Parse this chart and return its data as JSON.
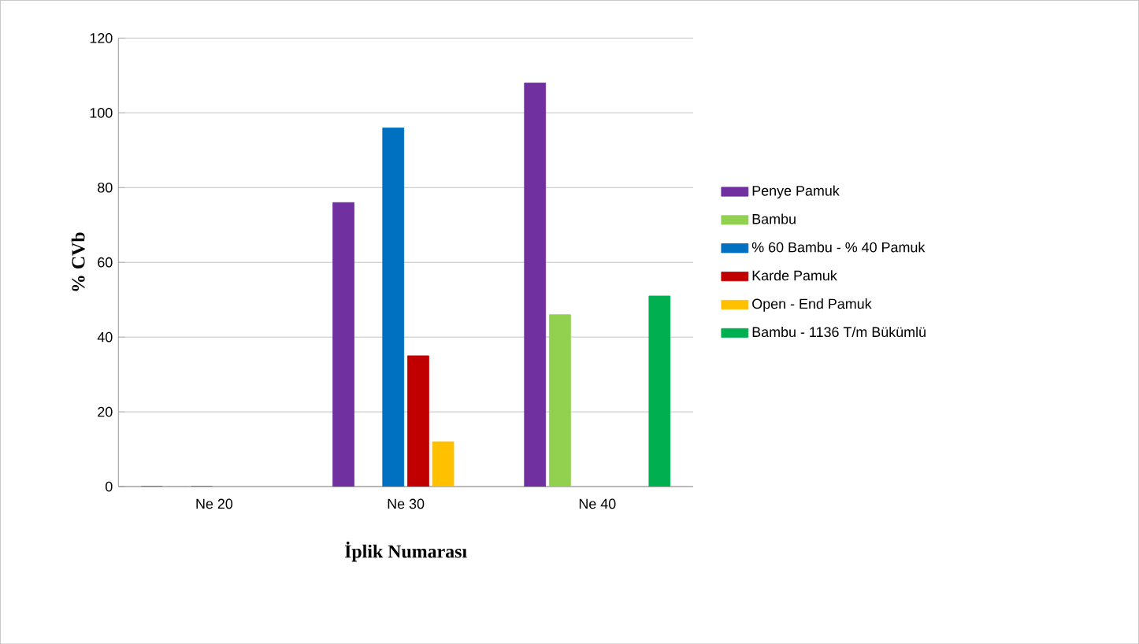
{
  "chart_data": {
    "type": "bar",
    "xlabel": "İplik Numarası",
    "ylabel": "% CVb",
    "categories": [
      "Ne 20",
      "Ne 30",
      "Ne 40"
    ],
    "series": [
      {
        "name": "Penye Pamuk",
        "color": "#7030a0",
        "values": [
          0,
          76,
          108
        ]
      },
      {
        "name": "Bambu",
        "color": "#92d050",
        "values": [
          0,
          0,
          46
        ]
      },
      {
        "name": "% 60 Bambu - % 40 Pamuk",
        "color": "#0070c0",
        "values": [
          0,
          96,
          null
        ]
      },
      {
        "name": "Karde Pamuk",
        "color": "#c00000",
        "values": [
          null,
          35,
          null
        ]
      },
      {
        "name": "Open - End Pamuk",
        "color": "#ffc000",
        "values": [
          null,
          12,
          null
        ]
      },
      {
        "name": "Bambu - 1136 T/m Bükümlü",
        "color": "#00b050",
        "values": [
          null,
          null,
          51
        ]
      }
    ],
    "ylim": [
      0,
      120
    ],
    "yticks": [
      0,
      20,
      40,
      60,
      80,
      100,
      120
    ],
    "grid": "y",
    "legend": "right"
  }
}
